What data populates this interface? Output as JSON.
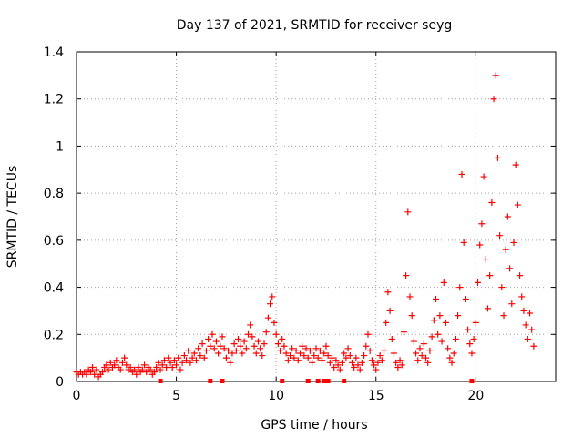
{
  "chart_data": {
    "type": "scatter",
    "title": "Day 137 of 2021, SRMTID for receiver seyg",
    "xlabel": "GPS time / hours",
    "ylabel": "SRMTID / TECUs",
    "xlim": [
      0,
      24
    ],
    "ylim": [
      0,
      1.4
    ],
    "xticks": [
      0,
      5,
      10,
      15,
      20
    ],
    "yticks": [
      0,
      0.2,
      0.4,
      0.6,
      0.8,
      1,
      1.2,
      1.4
    ],
    "xtick_labels": [
      "0",
      "5",
      "10",
      "15",
      "20"
    ],
    "ytick_labels": [
      "0",
      "0.2",
      "0.4",
      "0.6",
      "0.8",
      "1",
      "1.2",
      "1.4"
    ],
    "grid": true,
    "marker": "plus",
    "color": "#ff0000",
    "series": [
      {
        "name": "SRMTID",
        "points": [
          [
            0.0,
            0.04
          ],
          [
            0.1,
            0.03
          ],
          [
            0.2,
            0.04
          ],
          [
            0.3,
            0.03
          ],
          [
            0.4,
            0.04
          ],
          [
            0.5,
            0.03
          ],
          [
            0.6,
            0.05
          ],
          [
            0.7,
            0.04
          ],
          [
            0.8,
            0.06
          ],
          [
            0.9,
            0.03
          ],
          [
            1.0,
            0.05
          ],
          [
            1.1,
            0.02
          ],
          [
            1.2,
            0.03
          ],
          [
            1.3,
            0.04
          ],
          [
            1.4,
            0.06
          ],
          [
            1.5,
            0.07
          ],
          [
            1.6,
            0.05
          ],
          [
            1.7,
            0.08
          ],
          [
            1.8,
            0.06
          ],
          [
            1.9,
            0.07
          ],
          [
            2.0,
            0.09
          ],
          [
            2.1,
            0.06
          ],
          [
            2.2,
            0.05
          ],
          [
            2.3,
            0.08
          ],
          [
            2.4,
            0.1
          ],
          [
            2.5,
            0.07
          ],
          [
            2.6,
            0.05
          ],
          [
            2.7,
            0.06
          ],
          [
            2.8,
            0.04
          ],
          [
            2.9,
            0.05
          ],
          [
            3.0,
            0.03
          ],
          [
            3.1,
            0.06
          ],
          [
            3.2,
            0.04
          ],
          [
            3.3,
            0.05
          ],
          [
            3.4,
            0.07
          ],
          [
            3.5,
            0.04
          ],
          [
            3.6,
            0.06
          ],
          [
            3.7,
            0.05
          ],
          [
            3.8,
            0.03
          ],
          [
            3.9,
            0.04
          ],
          [
            4.0,
            0.06
          ],
          [
            4.1,
            0.08
          ],
          [
            4.2,
            0.05
          ],
          [
            4.3,
            0.07
          ],
          [
            4.4,
            0.09
          ],
          [
            4.5,
            0.06
          ],
          [
            4.6,
            0.1
          ],
          [
            4.7,
            0.08
          ],
          [
            4.8,
            0.06
          ],
          [
            4.9,
            0.09
          ],
          [
            5.0,
            0.07
          ],
          [
            5.1,
            0.1
          ],
          [
            5.2,
            0.05
          ],
          [
            5.3,
            0.08
          ],
          [
            5.4,
            0.11
          ],
          [
            5.5,
            0.09
          ],
          [
            5.6,
            0.13
          ],
          [
            5.7,
            0.08
          ],
          [
            5.8,
            0.1
          ],
          [
            5.9,
            0.12
          ],
          [
            6.0,
            0.09
          ],
          [
            6.1,
            0.14
          ],
          [
            6.2,
            0.11
          ],
          [
            6.3,
            0.16
          ],
          [
            6.4,
            0.1
          ],
          [
            6.5,
            0.13
          ],
          [
            6.6,
            0.18
          ],
          [
            6.7,
            0.15
          ],
          [
            6.8,
            0.2
          ],
          [
            6.9,
            0.14
          ],
          [
            7.0,
            0.17
          ],
          [
            7.1,
            0.12
          ],
          [
            7.2,
            0.15
          ],
          [
            7.3,
            0.19
          ],
          [
            7.4,
            0.14
          ],
          [
            7.5,
            0.1
          ],
          [
            7.6,
            0.13
          ],
          [
            7.7,
            0.08
          ],
          [
            7.8,
            0.12
          ],
          [
            7.9,
            0.16
          ],
          [
            8.0,
            0.13
          ],
          [
            8.1,
            0.18
          ],
          [
            8.2,
            0.15
          ],
          [
            8.3,
            0.12
          ],
          [
            8.4,
            0.17
          ],
          [
            8.5,
            0.14
          ],
          [
            8.6,
            0.2
          ],
          [
            8.7,
            0.24
          ],
          [
            8.8,
            0.19
          ],
          [
            8.9,
            0.15
          ],
          [
            9.0,
            0.12
          ],
          [
            9.1,
            0.17
          ],
          [
            9.2,
            0.14
          ],
          [
            9.3,
            0.11
          ],
          [
            9.4,
            0.16
          ],
          [
            9.5,
            0.21
          ],
          [
            9.6,
            0.27
          ],
          [
            9.7,
            0.33
          ],
          [
            9.8,
            0.36
          ],
          [
            9.9,
            0.25
          ],
          [
            10.0,
            0.2
          ],
          [
            10.1,
            0.16
          ],
          [
            10.2,
            0.13
          ],
          [
            10.3,
            0.18
          ],
          [
            10.4,
            0.15
          ],
          [
            10.5,
            0.12
          ],
          [
            10.6,
            0.09
          ],
          [
            10.7,
            0.11
          ],
          [
            10.8,
            0.14
          ],
          [
            10.9,
            0.1
          ],
          [
            11.0,
            0.13
          ],
          [
            11.1,
            0.09
          ],
          [
            11.2,
            0.12
          ],
          [
            11.3,
            0.15
          ],
          [
            11.4,
            0.11
          ],
          [
            11.5,
            0.14
          ],
          [
            11.6,
            0.1
          ],
          [
            11.7,
            0.13
          ],
          [
            11.8,
            0.08
          ],
          [
            11.9,
            0.11
          ],
          [
            12.0,
            0.14
          ],
          [
            12.1,
            0.1
          ],
          [
            12.2,
            0.13
          ],
          [
            12.3,
            0.09
          ],
          [
            12.4,
            0.12
          ],
          [
            12.5,
            0.15
          ],
          [
            12.6,
            0.11
          ],
          [
            12.7,
            0.08
          ],
          [
            12.8,
            0.1
          ],
          [
            12.9,
            0.06
          ],
          [
            13.0,
            0.09
          ],
          [
            13.1,
            0.07
          ],
          [
            13.2,
            0.05
          ],
          [
            13.3,
            0.08
          ],
          [
            13.4,
            0.12
          ],
          [
            13.5,
            0.1
          ],
          [
            13.6,
            0.14
          ],
          [
            13.7,
            0.11
          ],
          [
            13.8,
            0.08
          ],
          [
            13.9,
            0.06
          ],
          [
            14.0,
            0.1
          ],
          [
            14.1,
            0.07
          ],
          [
            14.2,
            0.05
          ],
          [
            14.3,
            0.08
          ],
          [
            14.4,
            0.11
          ],
          [
            14.5,
            0.15
          ],
          [
            14.6,
            0.2
          ],
          [
            14.7,
            0.13
          ],
          [
            14.8,
            0.09
          ],
          [
            14.9,
            0.07
          ],
          [
            15.0,
            0.05
          ],
          [
            15.1,
            0.08
          ],
          [
            15.2,
            0.11
          ],
          [
            15.3,
            0.09
          ],
          [
            15.4,
            0.13
          ],
          [
            15.5,
            0.25
          ],
          [
            15.6,
            0.38
          ],
          [
            15.7,
            0.3
          ],
          [
            15.8,
            0.18
          ],
          [
            15.9,
            0.12
          ],
          [
            16.0,
            0.08
          ],
          [
            16.1,
            0.06
          ],
          [
            16.2,
            0.09
          ],
          [
            16.3,
            0.07
          ],
          [
            16.4,
            0.21
          ],
          [
            16.5,
            0.45
          ],
          [
            16.6,
            0.72
          ],
          [
            16.7,
            0.36
          ],
          [
            16.8,
            0.28
          ],
          [
            16.9,
            0.17
          ],
          [
            17.0,
            0.12
          ],
          [
            17.1,
            0.09
          ],
          [
            17.2,
            0.14
          ],
          [
            17.3,
            0.11
          ],
          [
            17.4,
            0.16
          ],
          [
            17.5,
            0.1
          ],
          [
            17.6,
            0.08
          ],
          [
            17.7,
            0.13
          ],
          [
            17.8,
            0.19
          ],
          [
            17.9,
            0.26
          ],
          [
            18.0,
            0.35
          ],
          [
            18.1,
            0.2
          ],
          [
            18.2,
            0.28
          ],
          [
            18.3,
            0.17
          ],
          [
            18.4,
            0.42
          ],
          [
            18.5,
            0.25
          ],
          [
            18.6,
            0.14
          ],
          [
            18.7,
            0.1
          ],
          [
            18.8,
            0.08
          ],
          [
            18.9,
            0.12
          ],
          [
            19.0,
            0.18
          ],
          [
            19.1,
            0.28
          ],
          [
            19.2,
            0.4
          ],
          [
            19.3,
            0.88
          ],
          [
            19.4,
            0.59
          ],
          [
            19.5,
            0.35
          ],
          [
            19.6,
            0.22
          ],
          [
            19.7,
            0.16
          ],
          [
            19.8,
            0.12
          ],
          [
            19.9,
            0.18
          ],
          [
            20.0,
            0.25
          ],
          [
            20.1,
            0.42
          ],
          [
            20.2,
            0.58
          ],
          [
            20.3,
            0.67
          ],
          [
            20.4,
            0.87
          ],
          [
            20.5,
            0.52
          ],
          [
            20.6,
            0.31
          ],
          [
            20.7,
            0.45
          ],
          [
            20.8,
            0.76
          ],
          [
            20.9,
            1.2
          ],
          [
            21.0,
            1.3
          ],
          [
            21.1,
            0.95
          ],
          [
            21.2,
            0.62
          ],
          [
            21.3,
            0.4
          ],
          [
            21.4,
            0.28
          ],
          [
            21.5,
            0.56
          ],
          [
            21.6,
            0.7
          ],
          [
            21.7,
            0.48
          ],
          [
            21.8,
            0.33
          ],
          [
            21.9,
            0.59
          ],
          [
            22.0,
            0.92
          ],
          [
            22.1,
            0.75
          ],
          [
            22.2,
            0.45
          ],
          [
            22.3,
            0.36
          ],
          [
            22.4,
            0.3
          ],
          [
            22.5,
            0.24
          ],
          [
            22.6,
            0.18
          ],
          [
            22.7,
            0.29
          ],
          [
            22.8,
            0.22
          ],
          [
            22.9,
            0.15
          ]
        ],
        "zero_points": [
          4.2,
          6.7,
          7.3,
          10.3,
          11.6,
          12.1,
          12.4,
          12.6,
          13.4,
          19.8
        ]
      }
    ]
  }
}
